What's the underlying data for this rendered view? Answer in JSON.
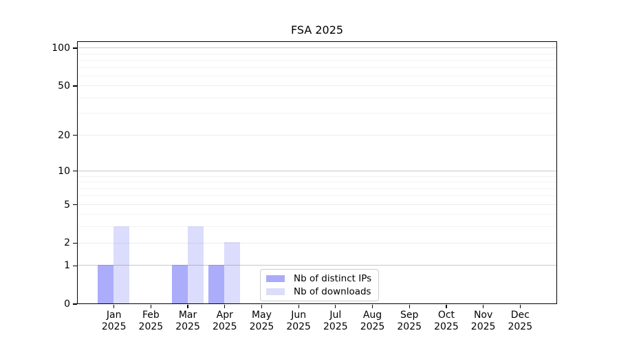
{
  "chart_data": {
    "type": "bar",
    "title": "FSA 2025",
    "x_year": "2025",
    "months": [
      "Jan",
      "Feb",
      "Mar",
      "Apr",
      "May",
      "Jun",
      "Jul",
      "Aug",
      "Sep",
      "Oct",
      "Nov",
      "Dec"
    ],
    "categories": [
      "Jan 2025",
      "Feb 2025",
      "Mar 2025",
      "Apr 2025",
      "May 2025",
      "Jun 2025",
      "Jul 2025",
      "Aug 2025",
      "Sep 2025",
      "Oct 2025",
      "Nov 2025",
      "Dec 2025"
    ],
    "series": [
      {
        "name": "Nb of distinct IPs",
        "values": [
          1,
          0,
          1,
          1,
          0,
          0,
          0,
          0,
          0,
          0,
          0,
          0
        ],
        "color": "#aaabf8",
        "base_color": "#6667f5",
        "opacity": 0.55
      },
      {
        "name": "Nb of downloads",
        "values": [
          3,
          0,
          3,
          2,
          0,
          0,
          0,
          0,
          0,
          0,
          0,
          0
        ],
        "color": "#dcddf9",
        "base_color": "#6667f5",
        "opacity": 0.23
      }
    ],
    "y_scale": "log1p",
    "y_tick_labels": [
      "0",
      "1",
      "2",
      "5",
      "10",
      "20",
      "50",
      "100"
    ],
    "y_ticks": [
      0,
      1,
      2,
      5,
      10,
      20,
      50,
      100
    ],
    "y_decade_ticks": [
      1,
      10,
      100
    ],
    "y_minor_gridlines": [
      3,
      4,
      6,
      7,
      8,
      9,
      30,
      40,
      60,
      70,
      80,
      90
    ],
    "ylim": [
      0,
      114
    ],
    "grid": true,
    "legend_position": "lower center inside"
  },
  "colors": {
    "bar_dark": "#aaabf8",
    "bar_light": "#dcddf9",
    "grid_decade": "#c8c8c8",
    "grid_labeled": "#ececec",
    "grid_minor": "#f2f2f2",
    "spine": "#000000",
    "legend_border": "#cccccc",
    "text": "#000000",
    "background": "#ffffff"
  }
}
